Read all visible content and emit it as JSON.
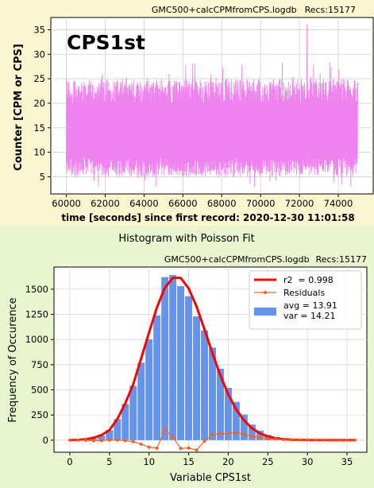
{
  "chart_data": [
    {
      "type": "line",
      "file_label": "GMC500+calcCPMfromCPS.logdb",
      "recs_label": "Recs:15177",
      "inset_label": "CPS1st",
      "ylabel": "Counter  [CPM or CPS]",
      "xlabel": "time [seconds] since first record: 2020-12-30 11:01:58",
      "xlim": [
        59200,
        75800
      ],
      "ylim": [
        1.5,
        37.5
      ],
      "xticks": [
        60000,
        62000,
        64000,
        66000,
        68000,
        70000,
        72000,
        74000
      ],
      "yticks": [
        5,
        10,
        15,
        20,
        25,
        30,
        35
      ],
      "series": [
        {
          "x_start": 60000,
          "x_end": 75000,
          "mean": 14,
          "min": 2,
          "max": 36,
          "spike_x": 72400,
          "color": "#ee82ee"
        }
      ],
      "grid": true
    },
    {
      "type": "bar",
      "title": "Histogram with Poisson Fit",
      "file_label": "GMC500+calcCPMfromCPS.logdb",
      "recs_label": "Recs:15177",
      "xlabel": "Variable CPS1st",
      "ylabel": "Frequency of Occurence",
      "xlim": [
        -2,
        37.5
      ],
      "ylim": [
        -120,
        1720
      ],
      "xticks": [
        0,
        5,
        10,
        15,
        20,
        25,
        30,
        35
      ],
      "yticks": [
        0,
        250,
        500,
        750,
        1000,
        1250,
        1500
      ],
      "bar_color": "#6495ed",
      "fit_color": "#ff0000",
      "residual_color": "#ff5f1f",
      "x": [
        0,
        1,
        2,
        3,
        4,
        5,
        6,
        7,
        8,
        9,
        10,
        11,
        12,
        13,
        14,
        15,
        16,
        17,
        18,
        19,
        20,
        21,
        22,
        23,
        24,
        25,
        26,
        27,
        28,
        29,
        30,
        31,
        32,
        33,
        34,
        35,
        36
      ],
      "counts": [
        0,
        1,
        6,
        18,
        45,
        100,
        210,
        360,
        540,
        770,
        1000,
        1240,
        1620,
        1640,
        1530,
        1430,
        1230,
        1090,
        920,
        710,
        520,
        380,
        255,
        155,
        95,
        52,
        30,
        14,
        7,
        4,
        2,
        1,
        0,
        0,
        0,
        0,
        0
      ],
      "fit": [
        0,
        2,
        8,
        24,
        50,
        100,
        210,
        365,
        555,
        810,
        1070,
        1320,
        1515,
        1612,
        1612,
        1508,
        1328,
        1100,
        865,
        645,
        455,
        305,
        196,
        118,
        68,
        37,
        19,
        9,
        4,
        2,
        1,
        0,
        0,
        0,
        0,
        0,
        0
      ],
      "residuals": [
        0,
        -1,
        -2,
        -6,
        -5,
        0,
        0,
        -5,
        -15,
        -40,
        -70,
        -80,
        105,
        28,
        -82,
        -78,
        -98,
        -10,
        55,
        65,
        65,
        75,
        59,
        37,
        27,
        15,
        11,
        5,
        3,
        2,
        1,
        1,
        0,
        0,
        0,
        0,
        0
      ],
      "grid": true,
      "legend": {
        "placement": "top-right",
        "fit_label": "r2  = 0.998",
        "residuals_label": "Residuals",
        "hist_label_1": "avg = 13.91",
        "hist_label_2": "var = 14.21"
      }
    }
  ]
}
